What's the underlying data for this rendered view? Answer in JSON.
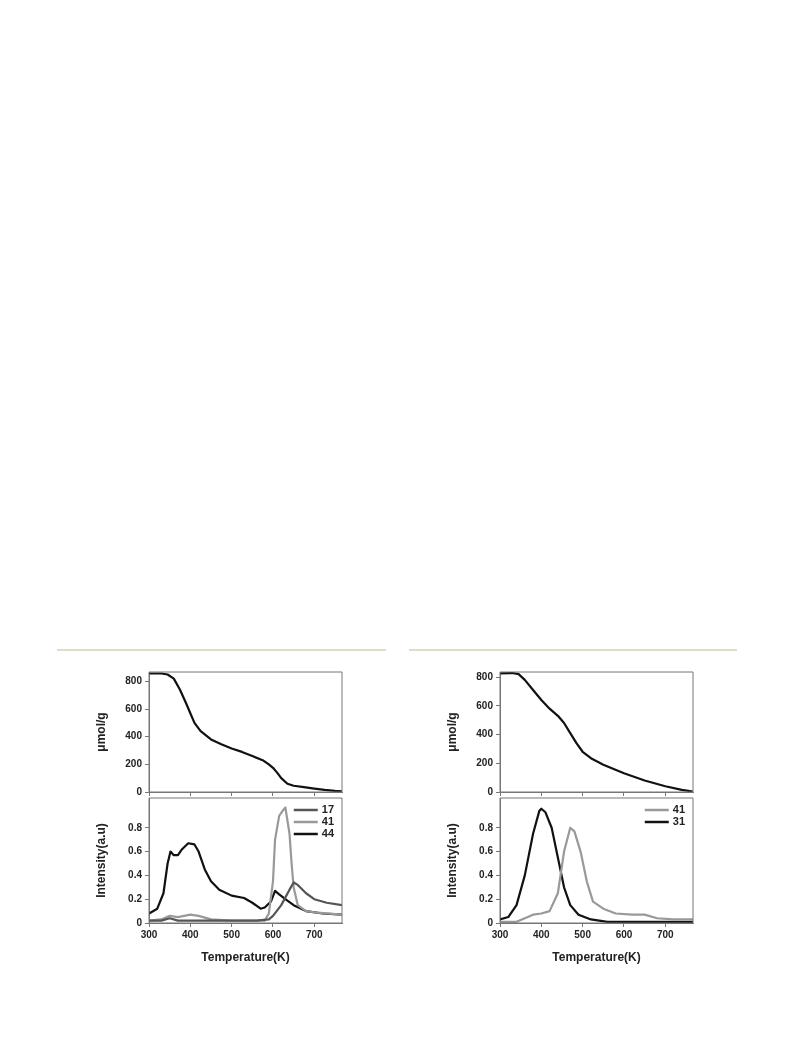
{
  "chart_data": [
    {
      "type": "line",
      "ylabel": "μmol/g",
      "xlim": [
        300,
        767
      ],
      "xticks": [
        300,
        400,
        500,
        600,
        700
      ],
      "ylim": [
        0,
        868
      ],
      "yticks": [
        0,
        200,
        400,
        600,
        800
      ],
      "tick_labels": "y",
      "grid": false,
      "legend": false,
      "marker": "none",
      "line_style": "solid",
      "series": [
        {
          "color": "#111111",
          "x": [
            300,
            330,
            345,
            360,
            375,
            390,
            400,
            410,
            425,
            450,
            475,
            500,
            525,
            550,
            575,
            590,
            600,
            610,
            620,
            635,
            650,
            675,
            700,
            725,
            750,
            767
          ],
          "values": [
            857,
            857,
            850,
            820,
            740,
            640,
            570,
            500,
            440,
            380,
            345,
            315,
            290,
            260,
            230,
            200,
            175,
            140,
            100,
            60,
            45,
            35,
            25,
            15,
            8,
            5
          ]
        }
      ]
    },
    {
      "type": "line",
      "xlabel": "Temperature(K)",
      "ylabel": "Intensity(a.u)",
      "xlim": [
        300,
        767
      ],
      "xticks": [
        300,
        400,
        500,
        600,
        700
      ],
      "ylim": [
        0,
        1.05
      ],
      "yticks": [
        0,
        0.2,
        0.4,
        0.6,
        0.8
      ],
      "grid": false,
      "legend": "top right",
      "marker": "none",
      "line_style": "solid",
      "series": [
        {
          "name": "17",
          "color": "#555555",
          "x": [
            300,
            330,
            350,
            370,
            400,
            450,
            500,
            560,
            590,
            600,
            620,
            640,
            650,
            660,
            680,
            700,
            730,
            767
          ],
          "values": [
            0.02,
            0.02,
            0.04,
            0.02,
            0.02,
            0.02,
            0.02,
            0.02,
            0.03,
            0.06,
            0.15,
            0.28,
            0.34,
            0.32,
            0.25,
            0.2,
            0.17,
            0.15
          ]
        },
        {
          "name": "41",
          "color": "#999999",
          "x": [
            300,
            330,
            350,
            370,
            400,
            420,
            450,
            500,
            580,
            590,
            600,
            605,
            615,
            625,
            630,
            640,
            645,
            650,
            660,
            680,
            700,
            767
          ],
          "values": [
            0.02,
            0.03,
            0.06,
            0.05,
            0.07,
            0.06,
            0.03,
            0.02,
            0.02,
            0.08,
            0.35,
            0.7,
            0.9,
            0.95,
            0.97,
            0.75,
            0.5,
            0.3,
            0.15,
            0.1,
            0.09,
            0.07
          ]
        },
        {
          "name": "44",
          "color": "#111111",
          "x": [
            300,
            320,
            335,
            345,
            352,
            360,
            370,
            380,
            395,
            410,
            420,
            435,
            450,
            470,
            500,
            530,
            550,
            570,
            580,
            595,
            605,
            615,
            630,
            650,
            680,
            720,
            767
          ],
          "values": [
            0.08,
            0.12,
            0.25,
            0.5,
            0.6,
            0.57,
            0.57,
            0.62,
            0.67,
            0.66,
            0.6,
            0.45,
            0.35,
            0.28,
            0.23,
            0.21,
            0.17,
            0.12,
            0.13,
            0.18,
            0.27,
            0.24,
            0.2,
            0.15,
            0.1,
            0.08,
            0.07
          ]
        }
      ]
    },
    {
      "type": "line",
      "ylabel": "μmol/g",
      "xlim": [
        300,
        767
      ],
      "xticks": [
        300,
        400,
        500,
        600,
        700
      ],
      "ylim": [
        0,
        835
      ],
      "yticks": [
        0,
        200,
        400,
        600,
        800
      ],
      "tick_labels": "y",
      "grid": false,
      "legend": false,
      "marker": "none",
      "line_style": "solid",
      "series": [
        {
          "color": "#111111",
          "x": [
            300,
            330,
            345,
            360,
            380,
            400,
            420,
            440,
            455,
            470,
            485,
            500,
            520,
            550,
            600,
            650,
            700,
            740,
            767
          ],
          "values": [
            825,
            828,
            820,
            780,
            710,
            640,
            580,
            530,
            480,
            410,
            340,
            280,
            235,
            190,
            130,
            80,
            40,
            15,
            3
          ]
        }
      ]
    },
    {
      "type": "line",
      "xlabel": "Temperature(K)",
      "ylabel": "Intensity(a.u)",
      "xlim": [
        300,
        767
      ],
      "xticks": [
        300,
        400,
        500,
        600,
        700
      ],
      "ylim": [
        0,
        1.05
      ],
      "yticks": [
        0,
        0.2,
        0.4,
        0.6,
        0.8
      ],
      "grid": false,
      "legend": "top right",
      "marker": "none",
      "line_style": "solid",
      "series": [
        {
          "name": "41",
          "color": "#999999",
          "x": [
            300,
            340,
            360,
            380,
            400,
            420,
            440,
            455,
            470,
            480,
            495,
            510,
            525,
            550,
            580,
            620,
            650,
            680,
            720,
            767
          ],
          "values": [
            0.01,
            0.01,
            0.04,
            0.07,
            0.08,
            0.1,
            0.25,
            0.6,
            0.8,
            0.77,
            0.6,
            0.35,
            0.18,
            0.12,
            0.08,
            0.07,
            0.07,
            0.04,
            0.03,
            0.03
          ]
        },
        {
          "name": "31",
          "color": "#111111",
          "x": [
            300,
            320,
            340,
            360,
            380,
            395,
            400,
            410,
            425,
            440,
            455,
            470,
            490,
            520,
            560,
            767
          ],
          "values": [
            0.03,
            0.05,
            0.15,
            0.4,
            0.75,
            0.94,
            0.96,
            0.93,
            0.8,
            0.55,
            0.3,
            0.15,
            0.07,
            0.03,
            0.01,
            0.01
          ]
        }
      ]
    }
  ]
}
